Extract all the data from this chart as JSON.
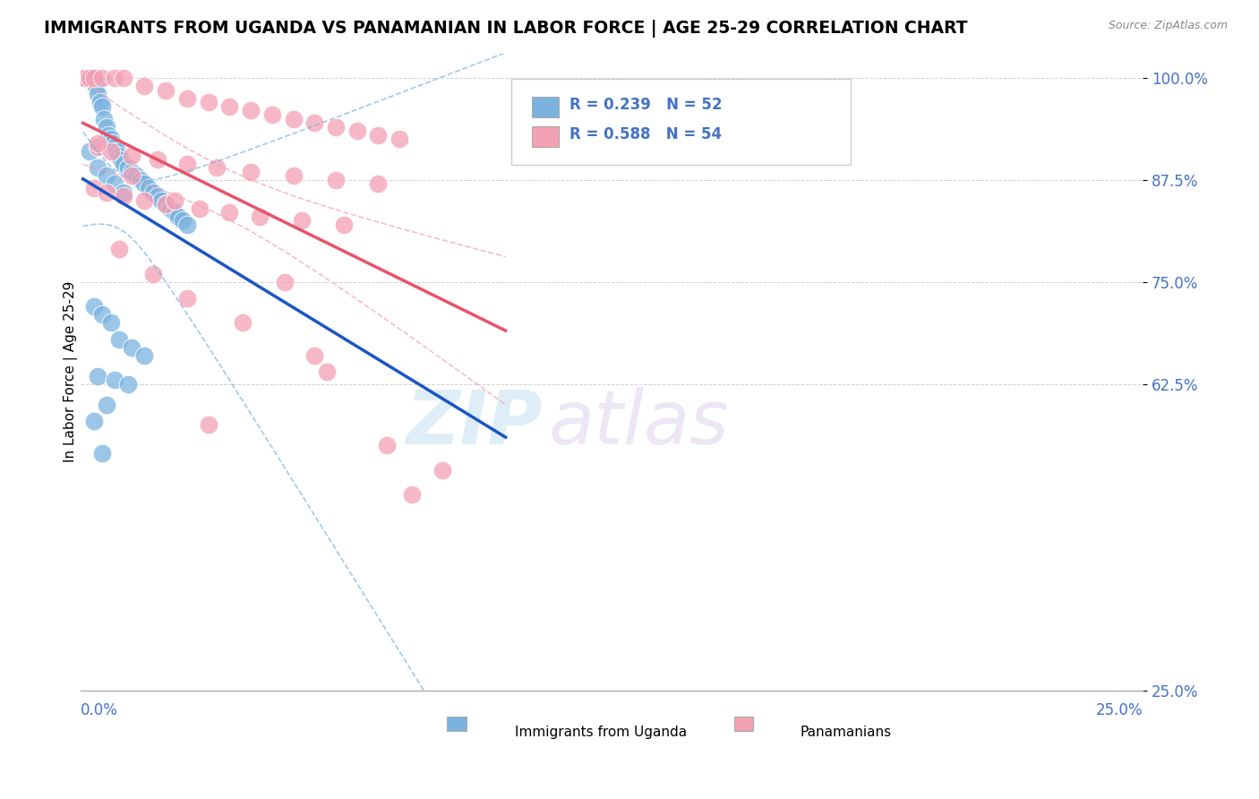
{
  "title": "IMMIGRANTS FROM UGANDA VS PANAMANIAN IN LABOR FORCE | AGE 25-29 CORRELATION CHART",
  "source": "Source: ZipAtlas.com",
  "ylabel": "In Labor Force | Age 25-29",
  "R_uganda": 0.239,
  "N_uganda": 52,
  "R_panama": 0.588,
  "N_panama": 54,
  "color_uganda": "#7ab3e0",
  "color_panama": "#f4a0b5",
  "line_color_uganda": "#1a56c4",
  "line_color_panama": "#e8536a",
  "ci_color_uganda": "#7ab3e0",
  "ci_color_panama": "#f4a0b5",
  "background_color": "#ffffff",
  "xlim": [
    0.0,
    25.0
  ],
  "ylim": [
    25.0,
    103.0
  ],
  "ytick_vals": [
    100.0,
    87.5,
    75.0,
    62.5,
    25.0
  ],
  "ytick_labels": [
    "100.0%",
    "87.5%",
    "75.0%",
    "62.5%",
    "25.0%"
  ],
  "legend1_label": "Immigrants from Uganda",
  "legend2_label": "Panamanians",
  "watermark_zip": "ZIP",
  "watermark_atlas": "atlas",
  "uganda_x": [
    0.05,
    0.1,
    0.15,
    0.2,
    0.25,
    0.3,
    0.35,
    0.4,
    0.45,
    0.5,
    0.55,
    0.6,
    0.65,
    0.7,
    0.75,
    0.8,
    0.85,
    0.9,
    0.95,
    1.0,
    1.1,
    1.2,
    1.3,
    1.4,
    1.5,
    1.6,
    1.7,
    1.8,
    1.9,
    2.0,
    2.1,
    2.2,
    2.3,
    2.4,
    2.5,
    0.2,
    0.4,
    0.6,
    0.8,
    1.0,
    0.3,
    0.5,
    0.7,
    0.9,
    1.2,
    1.5,
    0.4,
    0.8,
    1.1,
    0.6,
    0.3,
    0.5
  ],
  "uganda_y": [
    100.0,
    100.0,
    100.0,
    100.0,
    100.0,
    100.0,
    99.0,
    98.0,
    97.0,
    96.5,
    95.0,
    94.0,
    93.0,
    92.5,
    92.0,
    91.5,
    91.0,
    90.5,
    90.0,
    89.5,
    89.0,
    88.5,
    88.0,
    87.5,
    87.0,
    86.5,
    86.0,
    85.5,
    85.0,
    84.5,
    84.0,
    83.5,
    83.0,
    82.5,
    82.0,
    91.0,
    89.0,
    88.0,
    87.0,
    86.0,
    72.0,
    71.0,
    70.0,
    68.0,
    67.0,
    66.0,
    63.5,
    63.0,
    62.5,
    60.0,
    58.0,
    54.0
  ],
  "panama_x": [
    0.05,
    0.1,
    0.2,
    0.3,
    0.5,
    0.8,
    1.0,
    1.5,
    2.0,
    2.5,
    3.0,
    3.5,
    4.0,
    4.5,
    5.0,
    5.5,
    6.0,
    6.5,
    7.0,
    7.5,
    0.4,
    0.7,
    1.2,
    1.8,
    2.5,
    3.2,
    4.0,
    5.0,
    6.0,
    7.0,
    0.3,
    0.6,
    1.0,
    1.5,
    2.0,
    2.8,
    3.5,
    4.2,
    5.2,
    6.2,
    0.9,
    1.7,
    2.5,
    3.8,
    5.5,
    0.4,
    1.2,
    2.2,
    4.8,
    3.0,
    7.2,
    8.5,
    7.8,
    5.8
  ],
  "panama_y": [
    100.0,
    100.0,
    100.0,
    100.0,
    100.0,
    100.0,
    100.0,
    99.0,
    98.5,
    97.5,
    97.0,
    96.5,
    96.0,
    95.5,
    95.0,
    94.5,
    94.0,
    93.5,
    93.0,
    92.5,
    91.5,
    91.0,
    90.5,
    90.0,
    89.5,
    89.0,
    88.5,
    88.0,
    87.5,
    87.0,
    86.5,
    86.0,
    85.5,
    85.0,
    84.5,
    84.0,
    83.5,
    83.0,
    82.5,
    82.0,
    79.0,
    76.0,
    73.0,
    70.0,
    66.0,
    92.0,
    88.0,
    85.0,
    75.0,
    57.5,
    55.0,
    52.0,
    49.0,
    64.0
  ]
}
